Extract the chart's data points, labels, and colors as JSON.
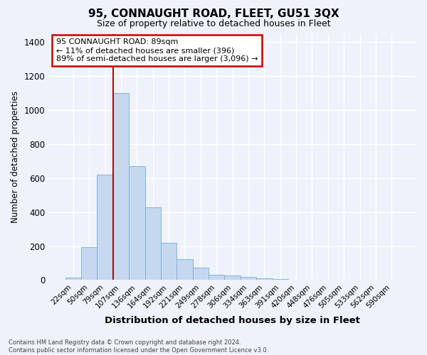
{
  "title": "95, CONNAUGHT ROAD, FLEET, GU51 3QX",
  "subtitle": "Size of property relative to detached houses in Fleet",
  "xlabel": "Distribution of detached houses by size in Fleet",
  "ylabel": "Number of detached properties",
  "categories": [
    "22sqm",
    "50sqm",
    "79sqm",
    "107sqm",
    "136sqm",
    "164sqm",
    "192sqm",
    "221sqm",
    "249sqm",
    "278sqm",
    "306sqm",
    "334sqm",
    "363sqm",
    "391sqm",
    "420sqm",
    "448sqm",
    "476sqm",
    "505sqm",
    "533sqm",
    "562sqm",
    "590sqm"
  ],
  "values": [
    13,
    193,
    620,
    1100,
    670,
    430,
    220,
    125,
    75,
    30,
    25,
    20,
    12,
    5,
    3,
    2,
    1,
    0,
    0,
    0,
    0
  ],
  "bar_color": "#c5d8f0",
  "bar_edge_color": "#7aadd4",
  "annotation_text_line1": "95 CONNAUGHT ROAD: 89sqm",
  "annotation_text_line2": "← 11% of detached houses are smaller (396)",
  "annotation_text_line3": "89% of semi-detached houses are larger (3,096) →",
  "ylim": [
    0,
    1450
  ],
  "yticks": [
    0,
    200,
    400,
    600,
    800,
    1000,
    1200,
    1400
  ],
  "footer_line1": "Contains HM Land Registry data © Crown copyright and database right 2024.",
  "footer_line2": "Contains public sector information licensed under the Open Government Licence v3.0.",
  "background_color": "#eef2fa",
  "grid_color": "#ffffff",
  "vline_color": "#cc0000",
  "annotation_box_facecolor": "#ffffff",
  "annotation_box_edgecolor": "#cc0000",
  "vline_x": 2.5
}
